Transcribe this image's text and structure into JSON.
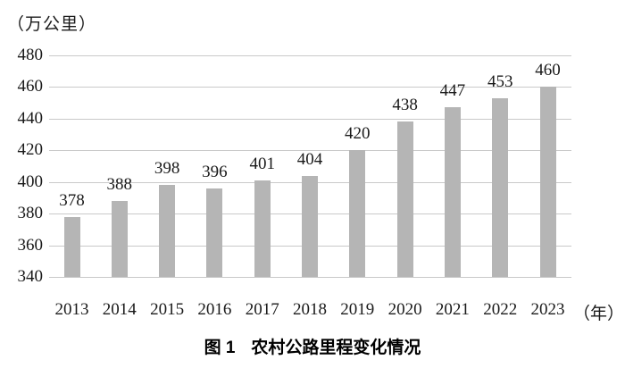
{
  "chart_data": {
    "type": "bar",
    "title": "农村公路里程变化情况",
    "unit_label": "（万公里）",
    "x_unit_label": "（年）",
    "categories": [
      "2013",
      "2014",
      "2015",
      "2016",
      "2017",
      "2018",
      "2019",
      "2020",
      "2021",
      "2022",
      "2023"
    ],
    "values": [
      378,
      388,
      398,
      396,
      401,
      404,
      420,
      438,
      447,
      453,
      460
    ],
    "xlabel": "年",
    "ylabel": "万公里",
    "ylim": [
      340,
      480
    ],
    "yticks": [
      340,
      360,
      380,
      400,
      420,
      440,
      460,
      480
    ],
    "grid": true,
    "data_labels": true,
    "legend": "none",
    "bar_color": "#b5b5b5",
    "grid_color": "#c9c9c9",
    "text_color": "#1a1a1a"
  },
  "caption": {
    "label": "图 1",
    "title": "农村公路里程变化情况"
  }
}
